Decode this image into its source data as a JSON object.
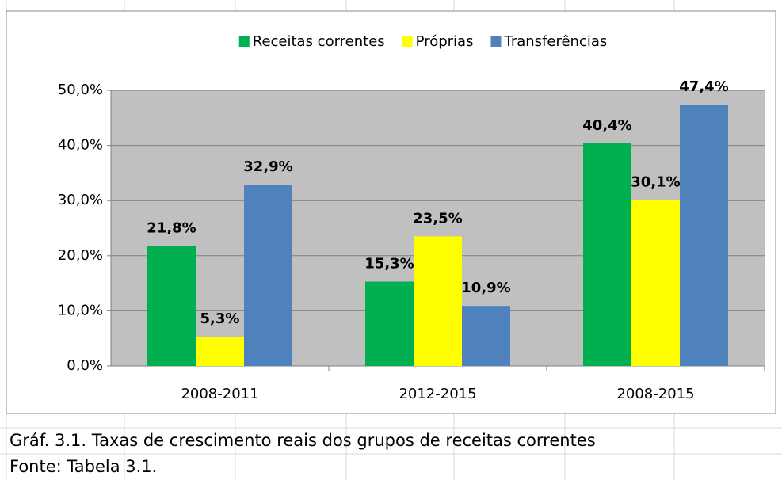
{
  "chart_data": {
    "type": "bar",
    "categories": [
      "2008-2011",
      "2012-2015",
      "2008-2015"
    ],
    "series": [
      {
        "name": "Receitas correntes",
        "color": "#00b050",
        "values": [
          21.8,
          15.3,
          40.4
        ],
        "value_labels": [
          "21,8%",
          "15,3%",
          "40,4%"
        ]
      },
      {
        "name": "Próprias",
        "color": "#ffff00",
        "values": [
          5.3,
          23.5,
          30.1
        ],
        "value_labels": [
          "5,3%",
          "23,5%",
          "30,1%"
        ]
      },
      {
        "name": "Transferências",
        "color": "#4f81bd",
        "values": [
          32.9,
          10.9,
          47.4
        ],
        "value_labels": [
          "32,9%",
          "10,9%",
          "47,4%"
        ]
      }
    ],
    "ylim": [
      0,
      50
    ],
    "yticks": [
      {
        "value": 0,
        "label": "0,0%"
      },
      {
        "value": 10,
        "label": "10,0%"
      },
      {
        "value": 20,
        "label": "20,0%"
      },
      {
        "value": 30,
        "label": "30,0%"
      },
      {
        "value": 40,
        "label": "40,0%"
      },
      {
        "value": 50,
        "label": "50,0%"
      }
    ],
    "grid": true,
    "legend": "top",
    "plot_background": "#c0c0c0"
  },
  "caption": "Gráf. 3.1. Taxas de crescimento reais dos grupos de receitas correntes",
  "source": "Fonte: Tabela 3.1."
}
